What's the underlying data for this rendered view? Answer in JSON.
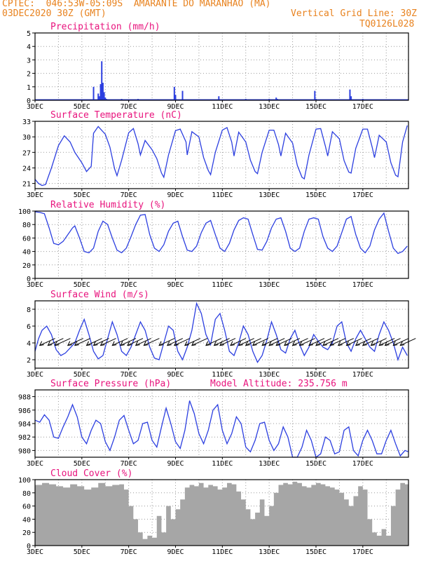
{
  "header": {
    "line1": "CPTEC:  046:53W-05:09S  AMARANTE DO MARANHAO (MA)",
    "date": "03DEC2020 30Z (GMT)",
    "grid_note": "Vertical Grid Line: 30Z",
    "code": "TQ0126L028"
  },
  "colors": {
    "line": "#2c3fe0",
    "title": "#e8137d",
    "header": "#e8821e",
    "cloud": "#a6a6a6",
    "grid": "#9a9a9a"
  },
  "x_tick_labels": [
    "3DEC",
    "5DEC",
    "7DEC",
    "9DEC",
    "11DEC",
    "13DEC",
    "15DEC",
    "17DEC"
  ],
  "chart_data": [
    {
      "type": "bar",
      "title": "Precipitation (mm/h)",
      "ylim": [
        0,
        5
      ],
      "yticks": [
        0,
        1,
        2,
        3,
        4,
        5
      ],
      "x": [
        0.6,
        2.5,
        2.7,
        2.75,
        2.8,
        2.85,
        2.9,
        2.95,
        3.0,
        3.05,
        3.1,
        3.7,
        4.0,
        4.4,
        5.95,
        6.0,
        6.3,
        7.85,
        9.0,
        10.0,
        10.3,
        10.35,
        11.95,
        12.0,
        13.45,
        13.5,
        14.0
      ],
      "values": [
        0.05,
        1.0,
        0.5,
        0.3,
        1.2,
        2.9,
        1.3,
        0.6,
        0.2,
        0.1,
        0.05,
        0.1,
        0.05,
        0.1,
        1.0,
        0.4,
        0.7,
        0.3,
        0.1,
        0.1,
        0.2,
        0.1,
        0.7,
        0.1,
        0.8,
        0.3,
        0.1
      ]
    },
    {
      "type": "line",
      "title": "Surface Temperature (nC)",
      "ylim": [
        20,
        33
      ],
      "yticks": [
        21,
        24,
        27,
        30,
        33
      ],
      "x": [
        0.0,
        0.15,
        0.3,
        0.45,
        0.7,
        1.0,
        1.25,
        1.5,
        1.7,
        2.0,
        2.2,
        2.4,
        2.5,
        2.7,
        3.0,
        3.2,
        3.4,
        3.5,
        3.7,
        4.0,
        4.2,
        4.4,
        4.5,
        4.7,
        5.0,
        5.2,
        5.4,
        5.5,
        5.7,
        6.0,
        6.2,
        6.45,
        6.5,
        6.7,
        7.0,
        7.2,
        7.4,
        7.5,
        7.7,
        8.0,
        8.2,
        8.4,
        8.5,
        8.7,
        9.0,
        9.2,
        9.4,
        9.5,
        9.7,
        10.0,
        10.2,
        10.4,
        10.5,
        10.7,
        11.0,
        11.2,
        11.4,
        11.5,
        11.7,
        12.0,
        12.2,
        12.4,
        12.5,
        12.7,
        13.0,
        13.2,
        13.4,
        13.5,
        13.7,
        14.0,
        14.2,
        14.4,
        14.5,
        14.7,
        15.0,
        15.2,
        15.4,
        15.5,
        15.7,
        15.9
      ],
      "values": [
        21.8,
        21.0,
        20.6,
        20.8,
        24.0,
        28.3,
        30.2,
        29.0,
        27.0,
        25.0,
        23.3,
        24.3,
        30.7,
        32.0,
        30.5,
        28.0,
        23.8,
        22.5,
        25.5,
        30.8,
        31.6,
        28.7,
        26.5,
        29.3,
        27.5,
        25.8,
        23.0,
        22.2,
        26.5,
        31.2,
        31.5,
        29.0,
        26.5,
        31.0,
        30.0,
        26.0,
        23.5,
        22.7,
        27.0,
        31.3,
        31.8,
        29.0,
        26.3,
        30.9,
        29.0,
        25.5,
        23.3,
        22.9,
        27.0,
        31.3,
        31.3,
        28.5,
        26.3,
        30.7,
        28.8,
        24.5,
        22.2,
        21.9,
        26.5,
        31.5,
        31.6,
        28.2,
        26.3,
        31.0,
        29.6,
        25.4,
        23.2,
        23.0,
        27.8,
        31.5,
        31.5,
        28.0,
        26.0,
        30.3,
        29.0,
        25.0,
        22.6,
        22.3,
        29.0,
        32.2
      ]
    },
    {
      "type": "line",
      "title": "Relative Humidity (%)",
      "ylim": [
        0,
        100
      ],
      "yticks": [
        0,
        20,
        40,
        60,
        80,
        100
      ],
      "x": [
        0.0,
        0.2,
        0.4,
        0.6,
        0.8,
        1.0,
        1.2,
        1.4,
        1.6,
        1.7,
        1.9,
        2.1,
        2.3,
        2.5,
        2.7,
        2.9,
        3.1,
        3.3,
        3.5,
        3.7,
        3.9,
        4.1,
        4.3,
        4.5,
        4.7,
        4.9,
        5.1,
        5.3,
        5.5,
        5.7,
        5.9,
        6.1,
        6.3,
        6.5,
        6.7,
        6.9,
        7.1,
        7.3,
        7.5,
        7.7,
        7.9,
        8.1,
        8.3,
        8.5,
        8.7,
        8.9,
        9.1,
        9.3,
        9.5,
        9.7,
        9.9,
        10.1,
        10.3,
        10.5,
        10.7,
        10.9,
        11.1,
        11.3,
        11.5,
        11.7,
        11.9,
        12.1,
        12.3,
        12.5,
        12.7,
        12.9,
        13.1,
        13.3,
        13.5,
        13.7,
        13.9,
        14.1,
        14.3,
        14.5,
        14.7,
        14.9,
        15.1,
        15.3,
        15.5,
        15.7,
        15.9
      ],
      "values": [
        99,
        98,
        96,
        75,
        52,
        50,
        55,
        65,
        75,
        78,
        60,
        40,
        38,
        45,
        70,
        85,
        80,
        60,
        42,
        38,
        45,
        62,
        80,
        94,
        95,
        65,
        45,
        40,
        50,
        70,
        82,
        85,
        62,
        42,
        40,
        48,
        68,
        82,
        86,
        65,
        45,
        40,
        52,
        72,
        86,
        90,
        88,
        65,
        43,
        42,
        55,
        75,
        88,
        90,
        70,
        45,
        40,
        45,
        70,
        88,
        90,
        88,
        62,
        45,
        40,
        48,
        68,
        88,
        92,
        65,
        45,
        38,
        48,
        72,
        88,
        97,
        70,
        45,
        37,
        40,
        48
      ]
    },
    {
      "type": "line",
      "title": "Surface Wind (m/s)",
      "ylim": [
        1,
        9
      ],
      "yticks": [
        2,
        4,
        6,
        8
      ],
      "x": [
        0.0,
        0.15,
        0.3,
        0.5,
        0.7,
        0.9,
        1.1,
        1.3,
        1.5,
        1.7,
        1.9,
        2.1,
        2.3,
        2.5,
        2.7,
        2.9,
        3.1,
        3.3,
        3.5,
        3.7,
        3.9,
        4.1,
        4.3,
        4.5,
        4.7,
        4.9,
        5.1,
        5.3,
        5.5,
        5.7,
        5.9,
        6.1,
        6.3,
        6.5,
        6.7,
        6.9,
        7.1,
        7.3,
        7.5,
        7.7,
        7.9,
        8.1,
        8.3,
        8.5,
        8.7,
        8.9,
        9.1,
        9.3,
        9.5,
        9.7,
        9.9,
        10.1,
        10.3,
        10.5,
        10.7,
        10.9,
        11.1,
        11.3,
        11.5,
        11.7,
        11.9,
        12.1,
        12.3,
        12.5,
        12.7,
        12.9,
        13.1,
        13.3,
        13.5,
        13.7,
        13.9,
        14.1,
        14.3,
        14.5,
        14.7,
        14.9,
        15.1,
        15.3,
        15.5,
        15.7,
        15.9
      ],
      "values": [
        3.0,
        4.5,
        5.5,
        6.0,
        5.0,
        3.2,
        2.5,
        2.8,
        3.4,
        4.0,
        5.5,
        6.8,
        5.0,
        3.0,
        2.1,
        2.5,
        4.5,
        6.5,
        5.0,
        3.0,
        2.5,
        3.5,
        5.0,
        6.5,
        5.5,
        3.5,
        2.2,
        2.0,
        4.0,
        6.0,
        5.5,
        3.0,
        2.0,
        3.5,
        5.5,
        8.7,
        7.5,
        5.0,
        3.8,
        6.8,
        7.5,
        5.5,
        3.0,
        2.5,
        4.0,
        6.0,
        5.0,
        3.0,
        1.7,
        2.5,
        4.3,
        6.5,
        5.0,
        3.2,
        2.8,
        4.5,
        5.5,
        3.8,
        2.5,
        3.5,
        5.0,
        4.2,
        3.5,
        3.2,
        4.0,
        6.0,
        6.5,
        4.0,
        3.0,
        4.5,
        5.5,
        4.5,
        3.5,
        3.0,
        5.0,
        6.5,
        5.5,
        4.0,
        2.0,
        3.5,
        2.5
      ],
      "arrows_x": [
        0.2,
        0.55,
        0.85,
        1.4,
        1.7,
        2.2,
        2.5,
        2.8,
        3.3,
        3.65,
        3.95,
        4.3,
        4.65,
        5.3,
        5.65,
        5.95,
        6.4,
        6.7,
        7.3,
        7.65,
        7.9,
        8.35,
        8.7,
        9.0,
        9.3,
        9.7,
        10.0,
        10.3,
        10.65,
        11.0,
        11.3,
        11.7,
        12.0,
        12.3,
        12.6,
        12.95,
        13.3,
        13.7,
        14.0,
        14.35,
        14.7,
        14.95,
        15.3,
        15.6
      ]
    },
    {
      "type": "line",
      "title": "Surface Pressure (hPa)",
      "subtitle": "Model Altitude: 235.756 m",
      "ylim": [
        979,
        989
      ],
      "yticks": [
        980,
        982,
        984,
        986,
        988
      ],
      "x": [
        0.0,
        0.2,
        0.4,
        0.6,
        0.8,
        1.0,
        1.2,
        1.4,
        1.6,
        1.8,
        2.0,
        2.2,
        2.4,
        2.6,
        2.8,
        3.0,
        3.2,
        3.4,
        3.6,
        3.8,
        4.0,
        4.2,
        4.4,
        4.6,
        4.8,
        5.0,
        5.2,
        5.4,
        5.6,
        5.8,
        6.0,
        6.2,
        6.4,
        6.6,
        6.8,
        7.0,
        7.2,
        7.4,
        7.6,
        7.8,
        8.0,
        8.2,
        8.4,
        8.6,
        8.8,
        9.0,
        9.2,
        9.4,
        9.6,
        9.8,
        10.0,
        10.2,
        10.4,
        10.6,
        10.8,
        11.0,
        11.2,
        11.4,
        11.6,
        11.8,
        12.0,
        12.2,
        12.4,
        12.6,
        12.8,
        13.0,
        13.2,
        13.4,
        13.6,
        13.8,
        14.0,
        14.2,
        14.4,
        14.6,
        14.8,
        15.0,
        15.2,
        15.4,
        15.6,
        15.8,
        15.95
      ],
      "values": [
        984.5,
        984.2,
        985.3,
        984.5,
        982.0,
        981.8,
        983.5,
        985.0,
        986.8,
        985.0,
        982.0,
        981.0,
        983.0,
        984.5,
        984.0,
        981.3,
        980.0,
        982.0,
        984.5,
        985.2,
        983.0,
        981.0,
        981.5,
        984.0,
        984.2,
        981.5,
        980.5,
        983.5,
        986.3,
        984.0,
        981.3,
        980.3,
        983.0,
        987.4,
        985.5,
        982.5,
        981.0,
        983.0,
        986.0,
        986.8,
        983.0,
        981.0,
        982.5,
        985.0,
        984.0,
        980.5,
        979.8,
        981.5,
        984.0,
        984.2,
        981.5,
        980.0,
        981.0,
        983.5,
        982.0,
        979.0,
        978.5,
        980.5,
        983.0,
        981.5,
        979.0,
        979.5,
        982.0,
        981.5,
        979.5,
        979.8,
        983.0,
        983.5,
        980.0,
        979.2,
        981.5,
        983.0,
        981.5,
        979.5,
        979.5,
        981.5,
        983.0,
        981.0,
        979.2,
        980.0,
        979.8
      ]
    },
    {
      "type": "area",
      "title": "Cloud Cover (%)",
      "ylim": [
        0,
        100
      ],
      "yticks": [
        0,
        20,
        40,
        60,
        80,
        100
      ],
      "x": [
        0.0,
        0.3,
        0.6,
        0.9,
        1.2,
        1.5,
        1.8,
        2.1,
        2.4,
        2.7,
        3.0,
        3.3,
        3.6,
        3.8,
        4.0,
        4.2,
        4.4,
        4.6,
        4.8,
        5.0,
        5.2,
        5.4,
        5.6,
        5.8,
        6.0,
        6.2,
        6.4,
        6.6,
        6.8,
        7.0,
        7.2,
        7.4,
        7.6,
        7.8,
        8.0,
        8.2,
        8.4,
        8.6,
        8.8,
        9.0,
        9.2,
        9.4,
        9.6,
        9.8,
        10.0,
        10.2,
        10.4,
        10.6,
        10.8,
        11.0,
        11.2,
        11.4,
        11.6,
        11.8,
        12.0,
        12.2,
        12.4,
        12.6,
        12.8,
        13.0,
        13.2,
        13.4,
        13.6,
        13.8,
        14.0,
        14.2,
        14.4,
        14.6,
        14.8,
        15.0,
        15.2,
        15.4,
        15.6,
        15.8,
        15.95
      ],
      "values": [
        92,
        95,
        93,
        90,
        88,
        93,
        90,
        85,
        88,
        95,
        90,
        92,
        93,
        85,
        60,
        40,
        20,
        10,
        15,
        12,
        45,
        20,
        60,
        40,
        55,
        70,
        88,
        92,
        90,
        95,
        88,
        92,
        90,
        85,
        88,
        95,
        93,
        82,
        70,
        55,
        40,
        50,
        70,
        45,
        60,
        80,
        92,
        95,
        93,
        97,
        95,
        90,
        88,
        92,
        95,
        93,
        90,
        88,
        85,
        80,
        70,
        60,
        75,
        90,
        85,
        40,
        20,
        15,
        25,
        15,
        60,
        85,
        95,
        93,
        90
      ]
    }
  ]
}
